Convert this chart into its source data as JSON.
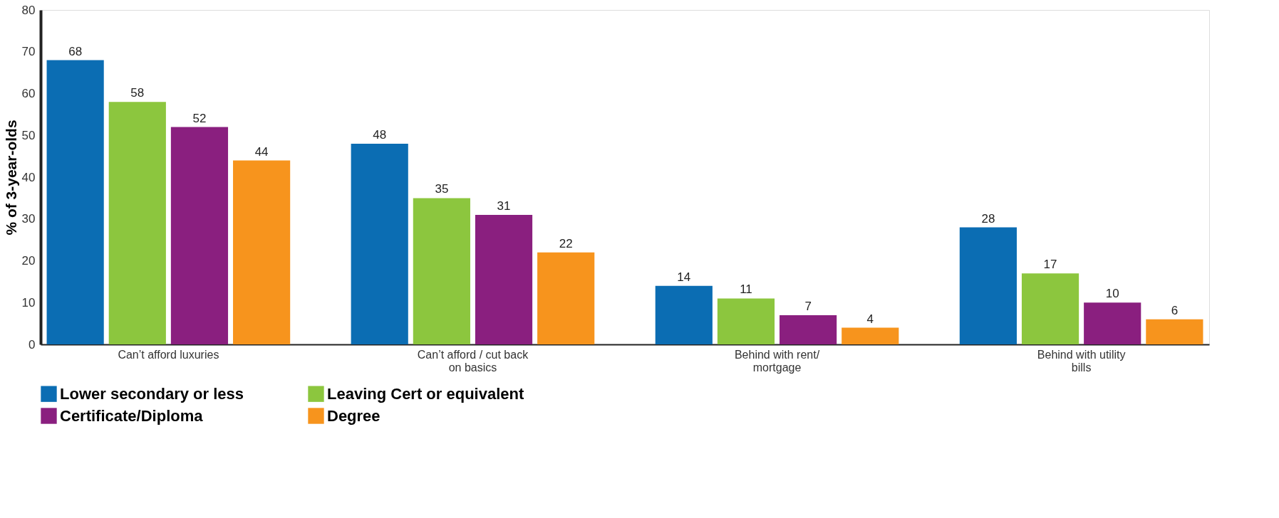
{
  "chart_data": {
    "type": "bar",
    "ylabel": "% of 3-year-olds",
    "categories": [
      "Can’t afford luxuries",
      "Can’t afford / cut back on basics",
      "Behind with rent/ mortgage",
      "Behind with utility bills"
    ],
    "series": [
      {
        "name": "Lower secondary or less",
        "color": "#0b6db3",
        "values": [
          68,
          48,
          14,
          28
        ]
      },
      {
        "name": "Leaving Cert or equivalent",
        "color": "#8cc63e",
        "values": [
          58,
          35,
          11,
          17
        ]
      },
      {
        "name": "Certificate/Diploma",
        "color": "#8a1f7f",
        "values": [
          52,
          31,
          7,
          10
        ]
      },
      {
        "name": "Degree",
        "color": "#f7941d",
        "values": [
          44,
          22,
          4,
          6
        ]
      }
    ],
    "ylim": [
      0,
      80
    ],
    "yticks": [
      0,
      10,
      20,
      30,
      40,
      50,
      60,
      70,
      80
    ],
    "data_labels": true,
    "grid": false,
    "legend": "bottom"
  }
}
